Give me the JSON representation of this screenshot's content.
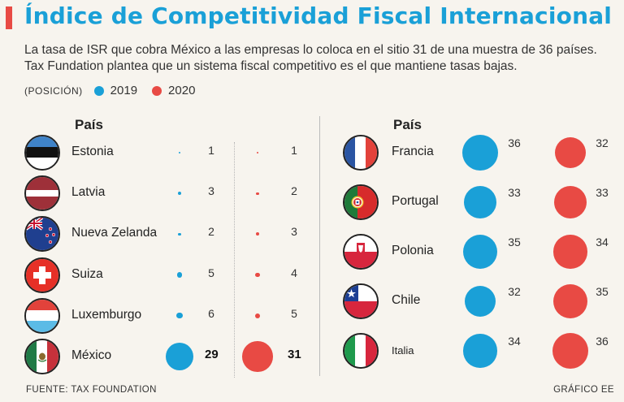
{
  "header": {
    "title": "Índice de Competitividad Fiscal Internacional",
    "subtitle_line1": "La tasa de ISR que cobra México a las empresas lo coloca en el sitio 31 de una muestra de 36 países.",
    "subtitle_line2": "Tax Fundation plantea que un sistema fiscal competitivo es el que mantiene tasas bajas."
  },
  "legend": {
    "position_label": "(POSICIÓN)",
    "items": [
      {
        "label": "2019",
        "color": "#1aa0d7"
      },
      {
        "label": "2020",
        "color": "#e84a44"
      }
    ]
  },
  "columns": {
    "left_header": "País",
    "right_header": "País"
  },
  "footer": {
    "source": "FUENTE: TAX FOUNDATION",
    "credit": "GRÁFICO EE"
  },
  "chart_data": {
    "type": "bubble-table",
    "title": "Índice de Competitividad Fiscal Internacional",
    "measure": "Posición",
    "series": [
      {
        "name": "2019",
        "color": "#1aa0d7"
      },
      {
        "name": "2020",
        "color": "#e84a44"
      }
    ],
    "rank_range": [
      1,
      36
    ],
    "countries": [
      {
        "name": "Estonia",
        "flag": "estonia-flag",
        "rank_2019": 1,
        "rank_2020": 1,
        "group": "left"
      },
      {
        "name": "Latvia",
        "flag": "latvia-flag",
        "rank_2019": 3,
        "rank_2020": 2,
        "group": "left"
      },
      {
        "name": "Nueva Zelanda",
        "flag": "new-zealand-flag",
        "rank_2019": 2,
        "rank_2020": 3,
        "group": "left"
      },
      {
        "name": "Suiza",
        "flag": "switzerland-flag",
        "rank_2019": 5,
        "rank_2020": 4,
        "group": "left"
      },
      {
        "name": "Luxemburgo",
        "flag": "luxembourg-flag",
        "rank_2019": 6,
        "rank_2020": 5,
        "group": "left"
      },
      {
        "name": "México",
        "flag": "mexico-flag",
        "rank_2019": 29,
        "rank_2020": 31,
        "group": "left",
        "highlight": true
      },
      {
        "name": "Francia",
        "flag": "france-flag",
        "rank_2019": 36,
        "rank_2020": 32,
        "group": "right"
      },
      {
        "name": "Portugal",
        "flag": "portugal-flag",
        "rank_2019": 33,
        "rank_2020": 33,
        "group": "right"
      },
      {
        "name": "Polonia",
        "flag": "poland-flag",
        "rank_2019": 35,
        "rank_2020": 34,
        "group": "right"
      },
      {
        "name": "Chile",
        "flag": "chile-flag",
        "rank_2019": 32,
        "rank_2020": 35,
        "group": "right"
      },
      {
        "name": "Italia",
        "flag": "italy-flag",
        "rank_2019": 34,
        "rank_2020": 36,
        "group": "right"
      }
    ]
  }
}
